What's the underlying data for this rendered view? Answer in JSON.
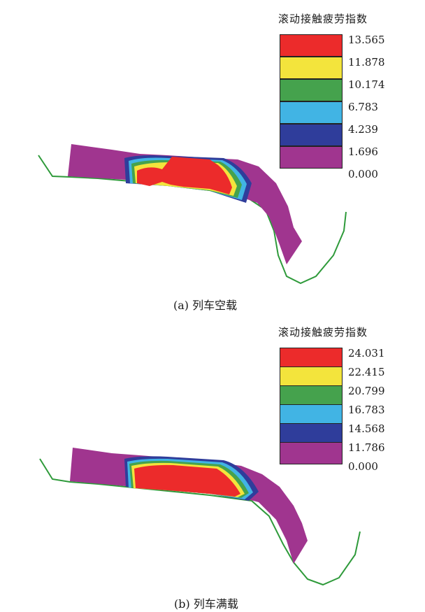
{
  "panels": [
    {
      "legend_title": "滚动接触疲劳指数",
      "levels": [
        {
          "label": "13.565",
          "color": "#ec2b2b"
        },
        {
          "label": "11.878",
          "color": "#f3e43c"
        },
        {
          "label": "10.174",
          "color": "#45a24d"
        },
        {
          "label": "6.783",
          "color": "#41b4e4"
        },
        {
          "label": "4.239",
          "color": "#2f3d9b"
        },
        {
          "label": "1.696",
          "color": "#a0358f"
        },
        {
          "label": "0.000",
          "color": ""
        }
      ],
      "caption": "(a) 列车空载"
    },
    {
      "legend_title": "滚动接触疲劳指数",
      "levels": [
        {
          "label": "24.031",
          "color": "#ec2b2b"
        },
        {
          "label": "22.415",
          "color": "#f3e43c"
        },
        {
          "label": "20.799",
          "color": "#45a24d"
        },
        {
          "label": "16.783",
          "color": "#41b4e4"
        },
        {
          "label": "14.568",
          "color": "#2f3d9b"
        },
        {
          "label": "11.786",
          "color": "#a0358f"
        },
        {
          "label": "0.000",
          "color": ""
        }
      ],
      "caption": "(b) 列车满载"
    }
  ],
  "colors": {
    "outline": "#2e9a3a",
    "base": "#a0358f",
    "red": "#ec2b2b",
    "yellow": "#f3e43c",
    "green": "#45a24d",
    "cyan": "#41b4e4",
    "blue": "#2f3d9b"
  }
}
